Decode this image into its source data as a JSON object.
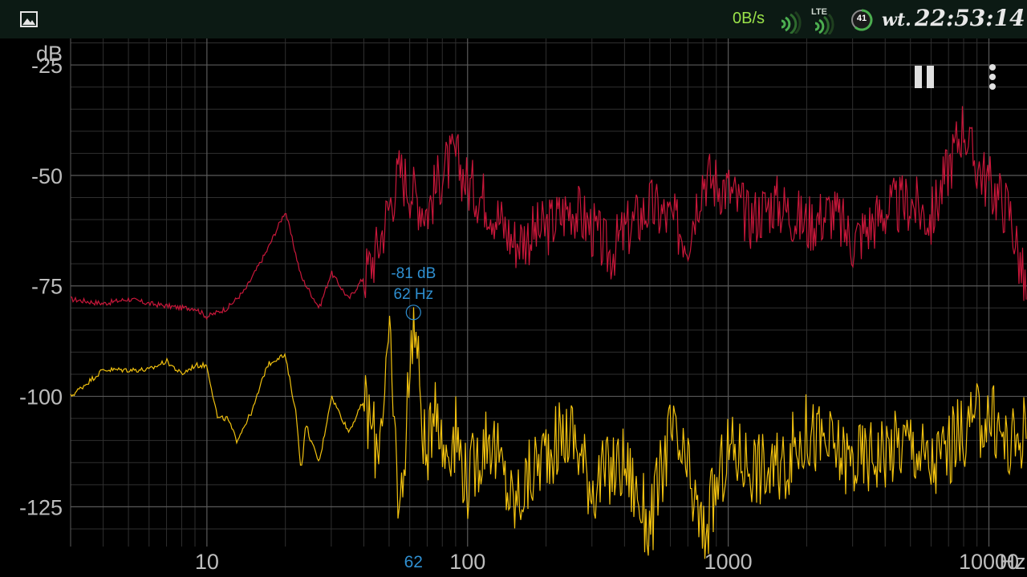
{
  "status_bar": {
    "net_speed": "0B/s",
    "network": "LTE",
    "battery": "41",
    "day": "wt.",
    "time": "22:53:14",
    "icons": [
      "gallery-icon",
      "wifi-signal-icon",
      "lte-signal-icon",
      "battery-icon"
    ],
    "colors": {
      "net_speed": "#9be34a",
      "background": "#0c1a14"
    }
  },
  "toolbar": {
    "icons": [
      "pause-icon",
      "more-vert-icon"
    ]
  },
  "chart_data": {
    "type": "line",
    "xscale": "log",
    "xlim": [
      3,
      14000
    ],
    "ylim": [
      -134,
      -19
    ],
    "ylabel": "dB",
    "xlabel": "Hz",
    "yticks": [
      -25,
      -50,
      -75,
      -100,
      -125
    ],
    "ytick_labels": [
      "-25",
      "-50",
      "-75",
      "-100",
      "-125"
    ],
    "xticks": [
      10,
      100,
      1000,
      10000
    ],
    "xtick_labels": [
      "10",
      "100",
      "1000",
      "10000"
    ],
    "grid": true,
    "marker": {
      "freq": 62,
      "db": -81,
      "label_db": "-81 dB",
      "label_hz": "62 Hz",
      "axis_label": "62"
    },
    "series": [
      {
        "color": "#c8173a",
        "x": [
          3,
          4,
          5,
          6,
          8,
          9,
          10,
          12,
          14,
          17,
          20,
          23,
          27,
          30,
          35,
          40,
          45,
          50,
          55,
          62,
          70,
          80,
          90,
          100,
          120,
          150,
          200,
          250,
          300,
          350,
          400,
          500,
          600,
          700,
          800,
          1000,
          1200,
          1500,
          2000,
          2500,
          3000,
          4000,
          5000,
          6000,
          8000,
          8500,
          10000,
          12000,
          14000
        ],
        "y": [
          -78,
          -79,
          -78,
          -79,
          -80,
          -80,
          -82,
          -80,
          -76,
          -67,
          -58,
          -73,
          -80,
          -72,
          -78,
          -73,
          -67,
          -57,
          -49,
          -54,
          -58,
          -49,
          -46,
          -52,
          -56,
          -65,
          -62,
          -57,
          -62,
          -68,
          -63,
          -57,
          -60,
          -64,
          -50,
          -53,
          -60,
          -56,
          -61,
          -58,
          -65,
          -58,
          -56,
          -60,
          -38,
          -45,
          -52,
          -58,
          -78
        ]
      },
      {
        "color": "#f2c20f",
        "x": [
          3,
          4,
          5,
          6,
          7,
          8,
          9,
          10,
          11,
          12,
          13,
          15,
          17,
          19,
          20,
          22,
          23,
          24,
          25,
          27,
          30,
          35,
          40,
          45,
          50,
          55,
          62,
          70,
          75,
          80,
          90,
          100,
          120,
          150,
          200,
          250,
          300,
          400,
          500,
          600,
          700,
          800,
          1000,
          1500,
          2000,
          3000,
          4000,
          5000,
          6000,
          8000,
          10000,
          12000,
          14000
        ],
        "y": [
          -100,
          -94,
          -94,
          -94,
          -92,
          -95,
          -93,
          -93,
          -105,
          -105,
          -110,
          -103,
          -93,
          -91,
          -91,
          -104,
          -117,
          -106,
          -110,
          -115,
          -100,
          -108,
          -101,
          -112,
          -88,
          -128,
          -81,
          -118,
          -96,
          -113,
          -108,
          -120,
          -108,
          -125,
          -112,
          -108,
          -120,
          -115,
          -130,
          -108,
          -118,
          -132,
          -112,
          -118,
          -108,
          -115,
          -112,
          -110,
          -116,
          -108,
          -104,
          -112,
          -106
        ]
      }
    ]
  }
}
